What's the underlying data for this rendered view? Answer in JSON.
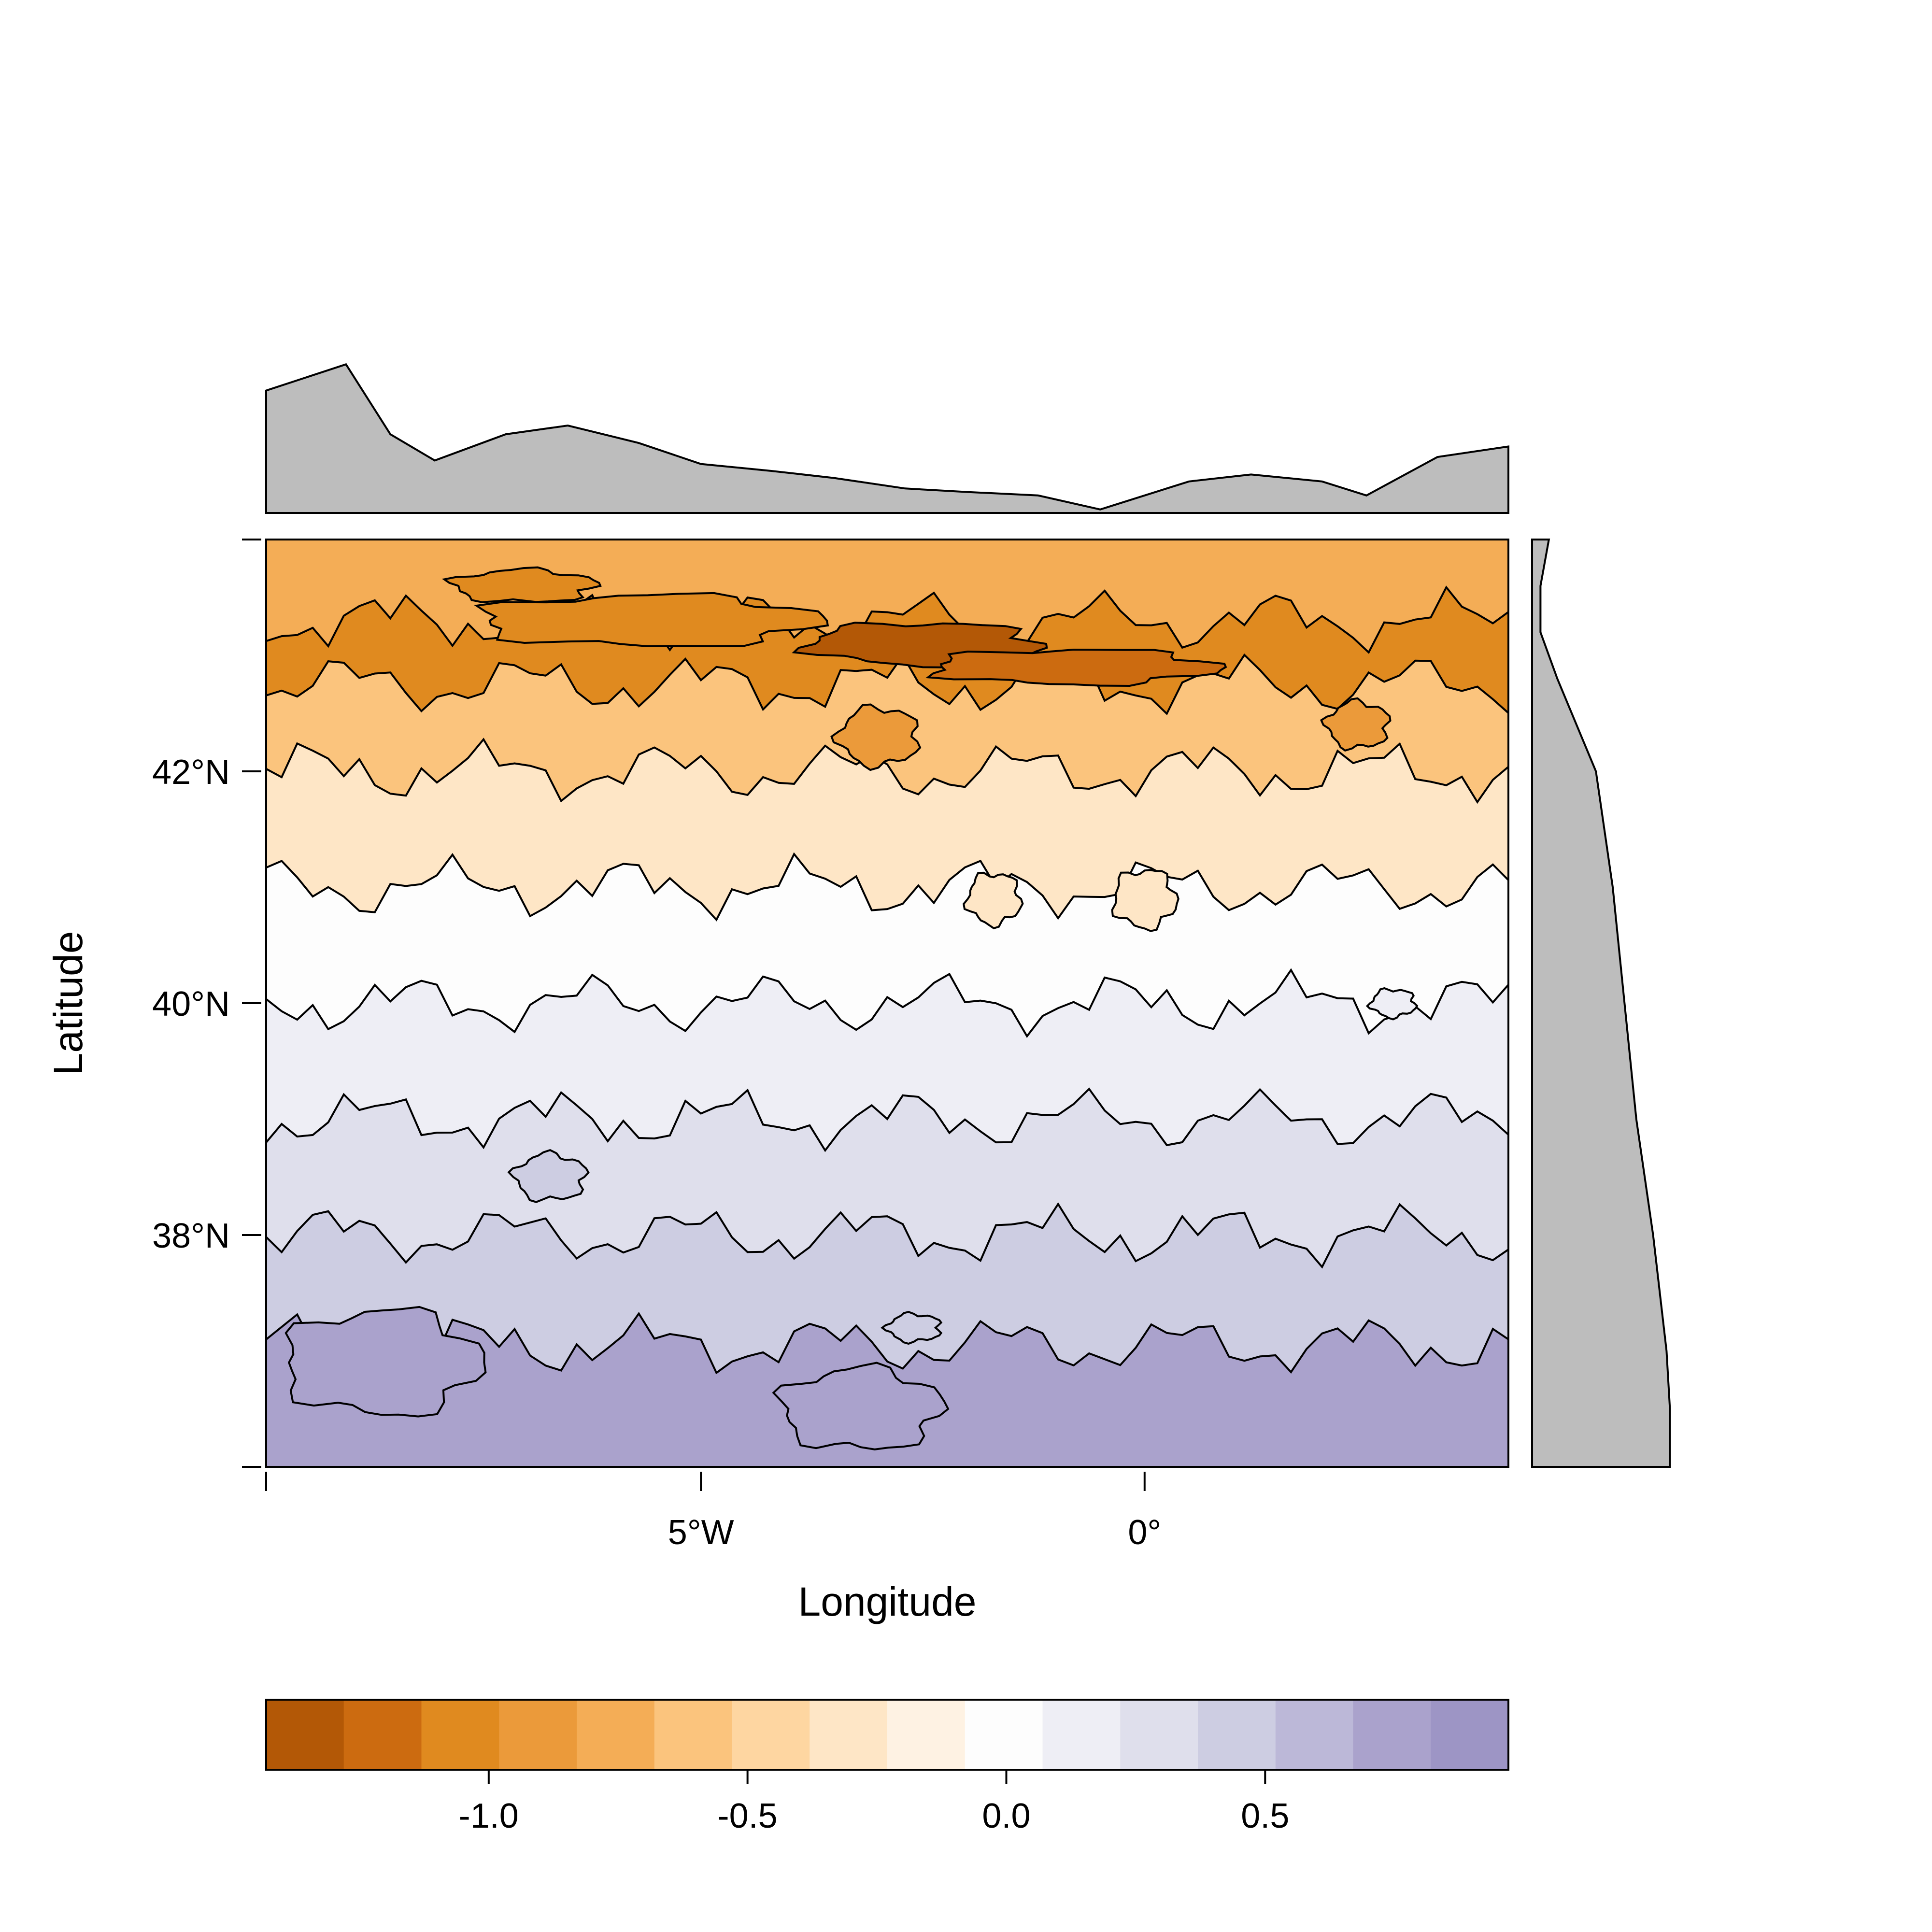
{
  "chart_data": {
    "type": "filled-contour-map",
    "title": "",
    "xlabel": "Longitude",
    "ylabel": "Latitude",
    "xlim_lon": [
      -9.9,
      4.1
    ],
    "ylim_lat": [
      36.0,
      44.0
    ],
    "x_ticks": [
      {
        "value": -5,
        "label": "5°W"
      },
      {
        "value": 0,
        "label": "0°"
      }
    ],
    "y_ticks": [
      {
        "value": 38,
        "label": "38°N"
      },
      {
        "value": 40,
        "label": "40°N"
      },
      {
        "value": 42,
        "label": "42°N"
      }
    ],
    "contour_levels": [
      -1.43,
      -1.28,
      -1.13,
      -0.98,
      -0.83,
      -0.68,
      -0.53,
      -0.38,
      -0.23,
      -0.08,
      0.07,
      0.22,
      0.37,
      0.52,
      0.67,
      0.82,
      0.97
    ],
    "colors": [
      "#b35806",
      "#cc6b10",
      "#e08a1f",
      "#eb9a3a",
      "#f4ad56",
      "#fbc47d",
      "#fed6a1",
      "#fee6c6",
      "#fef2e3",
      "#fdfdfd",
      "#eeeef5",
      "#dfdfec",
      "#cdcde2",
      "#bcb8d8",
      "#aaa2cc",
      "#9d95c5"
    ],
    "colorbar": {
      "ticks": [
        {
          "value": -1.0,
          "label": "-1.0"
        },
        {
          "value": -0.5,
          "label": "-0.5"
        },
        {
          "value": 0.0,
          "label": "0.0"
        },
        {
          "value": 0.5,
          "label": "0.5"
        }
      ]
    },
    "field_description_bands": [
      {
        "lat": 43.6,
        "value": -0.8
      },
      {
        "lat": 43.0,
        "value": -1.1
      },
      {
        "lat": 42.5,
        "value": -0.55
      },
      {
        "lat": 41.5,
        "value": -0.25
      },
      {
        "lat": 40.5,
        "value": 0.0
      },
      {
        "lat": 39.5,
        "value": 0.15
      },
      {
        "lat": 38.5,
        "value": 0.3
      },
      {
        "lat": 37.5,
        "value": 0.45
      },
      {
        "lat": 36.6,
        "value": 0.7
      }
    ],
    "marginal_top_profile": {
      "description": "column mean of field vs longitude",
      "lon": [
        -9.9,
        -9.0,
        -8.5,
        -8.0,
        -7.2,
        -6.5,
        -5.7,
        -5.0,
        -4.2,
        -3.5,
        -2.7,
        -2.0,
        -1.2,
        -0.5,
        0.5,
        1.2,
        2.0,
        2.5,
        3.3,
        4.1
      ],
      "value": [
        0.7,
        0.85,
        0.45,
        0.3,
        0.45,
        0.5,
        0.4,
        0.28,
        0.24,
        0.2,
        0.14,
        0.12,
        0.1,
        0.02,
        0.18,
        0.22,
        0.18,
        0.1,
        0.32,
        0.38
      ]
    },
    "marginal_right_profile": {
      "description": "row mean of field vs latitude",
      "lat": [
        44.0,
        43.6,
        43.2,
        42.8,
        42.0,
        41.0,
        40.0,
        39.0,
        38.0,
        37.0,
        36.5,
        36.0
      ],
      "value": [
        0.1,
        0.05,
        0.05,
        0.15,
        0.38,
        0.48,
        0.55,
        0.62,
        0.72,
        0.8,
        0.82,
        0.82
      ]
    }
  }
}
